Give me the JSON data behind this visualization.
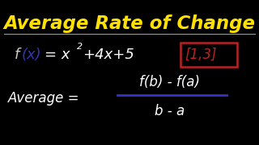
{
  "background_color": "#000000",
  "title": "Average Rate of Change",
  "title_color": "#FFE000",
  "title_fontsize": 16.5,
  "line_color": "#999999",
  "interval_color": "#BB2222",
  "frac_line_color": "#3333CC",
  "white": "#FFFFFF",
  "blue_x": "#3333BB",
  "f_color": "#CCCCCC",
  "avg_label": "Average =",
  "numerator": "f(b) - f(a)",
  "denominator": "b - a"
}
